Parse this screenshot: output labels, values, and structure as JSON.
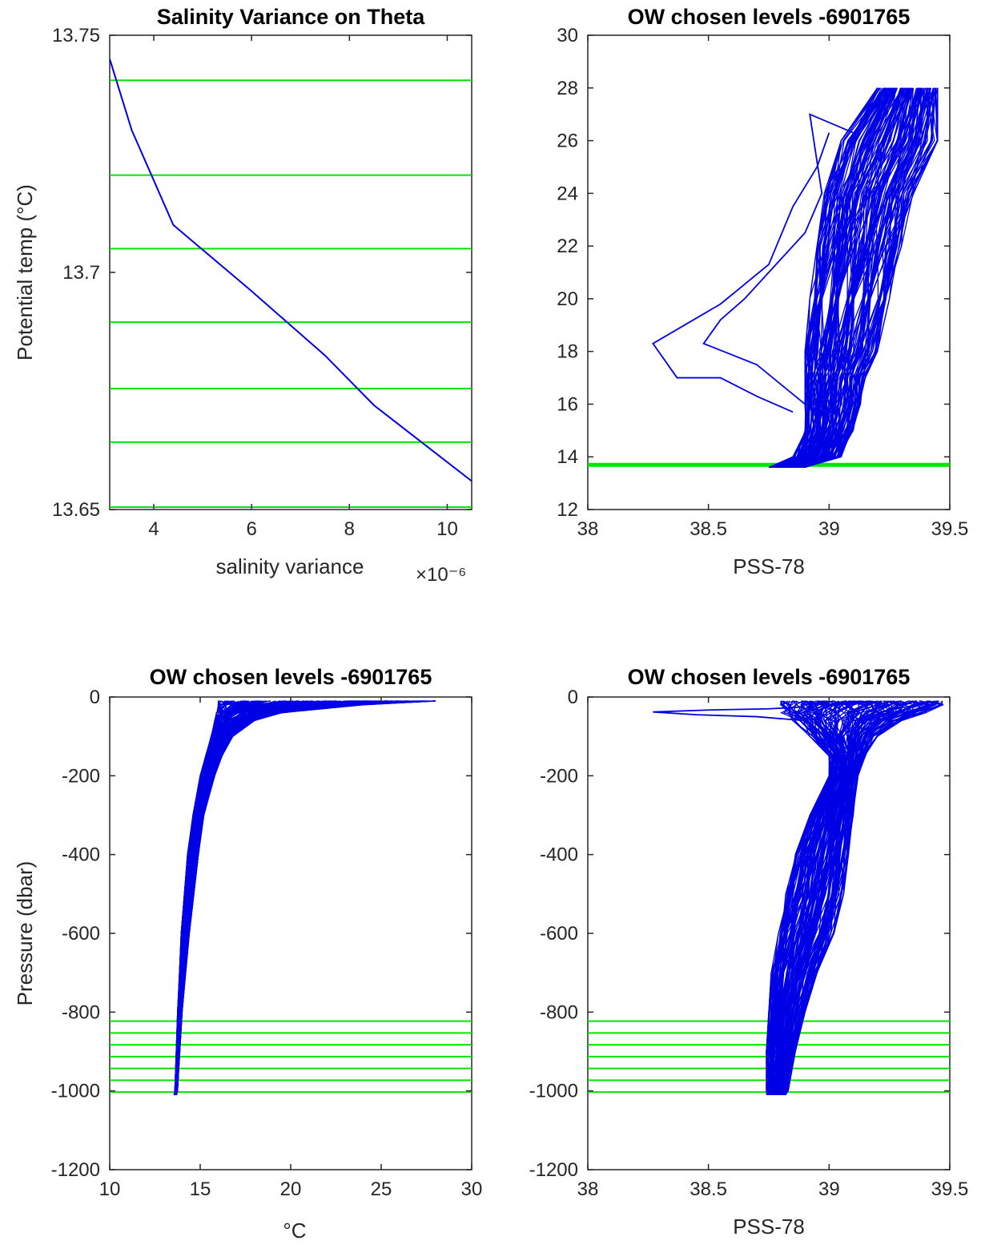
{
  "colors": {
    "profile": "#0000e6",
    "level": "#00e600",
    "axis": "#262626",
    "background": "#ffffff"
  },
  "chart_data": [
    {
      "type": "line",
      "title": "Salinity Variance on Theta",
      "xlabel": "salinity variance",
      "ylabel": "Potential temp (°C)",
      "x_exponent": "×10⁻⁶",
      "xlim": [
        3.1e-06,
        1.05e-05
      ],
      "ylim": [
        13.65,
        13.75
      ],
      "x_ticks": [
        4e-06,
        6e-06,
        8e-06,
        1e-05
      ],
      "x_tick_labels": [
        "4",
        "6",
        "8",
        "10"
      ],
      "y_ticks": [
        13.65,
        13.7,
        13.75
      ],
      "y_tick_labels": [
        "13.65",
        "13.7",
        "13.75"
      ],
      "series": [
        {
          "x": [
            3.1e-06,
            3.55e-06,
            4.4e-06,
            5.95e-06,
            7.5e-06,
            8.5e-06,
            1.05e-05
          ],
          "y": [
            13.745,
            13.73,
            13.71,
            13.6965,
            13.6825,
            13.672,
            13.656
          ]
        }
      ],
      "level_lines_y": [
        13.7405,
        13.7205,
        13.705,
        13.6895,
        13.6755,
        13.6642,
        13.6505
      ]
    },
    {
      "type": "line",
      "title": "OW chosen levels -6901765",
      "xlabel": "PSS-78",
      "ylabel": "",
      "xlim": [
        38,
        39.5
      ],
      "ylim": [
        12,
        30
      ],
      "x_ticks": [
        38,
        38.5,
        39,
        39.5
      ],
      "x_tick_labels": [
        "38",
        "38.5",
        "39",
        "39.5"
      ],
      "y_ticks": [
        12,
        14,
        16,
        18,
        20,
        22,
        24,
        26,
        28,
        30
      ],
      "y_tick_labels": [
        "12",
        "14",
        "16",
        "18",
        "20",
        "22",
        "24",
        "26",
        "28",
        "30"
      ],
      "profile_count": 140,
      "profile_envelope": {
        "theta": [
          13.6,
          14,
          15,
          16,
          17,
          18,
          20,
          22,
          24,
          26,
          28
        ],
        "salinity_min": [
          38.75,
          38.85,
          38.9,
          38.9,
          38.9,
          38.9,
          38.92,
          38.95,
          38.98,
          39.05,
          39.2
        ],
        "salinity_max": [
          38.9,
          39.05,
          39.1,
          39.13,
          39.15,
          39.2,
          39.25,
          39.3,
          39.35,
          39.45,
          39.45
        ]
      },
      "outlier_profiles": [
        {
          "x": [
            38.85,
            38.7,
            38.55,
            38.37,
            38.27,
            38.55,
            38.75,
            38.85,
            38.95,
            39.0
          ],
          "y": [
            15.7,
            16.3,
            17.0,
            17.0,
            18.3,
            19.8,
            21.3,
            23.5,
            25.0,
            26.3
          ]
        },
        {
          "x": [
            38.9,
            38.7,
            38.48,
            38.55,
            38.65,
            38.9,
            38.97,
            38.92,
            39.1
          ],
          "y": [
            16.0,
            17.5,
            18.3,
            19.2,
            20.0,
            22.5,
            24.0,
            27.0,
            26.3
          ]
        }
      ],
      "level_lines_y": [
        13.65,
        13.67,
        13.69,
        13.7,
        13.71,
        13.73,
        13.74
      ]
    },
    {
      "type": "line",
      "title": "OW chosen levels -6901765",
      "xlabel": "°C",
      "ylabel": "Pressure (dbar)",
      "xlim": [
        10,
        30
      ],
      "ylim": [
        -1200,
        0
      ],
      "x_ticks": [
        10,
        15,
        20,
        25,
        30
      ],
      "x_tick_labels": [
        "10",
        "15",
        "20",
        "25",
        "30"
      ],
      "y_ticks": [
        -1200,
        -1000,
        -800,
        -600,
        -400,
        -200,
        0
      ],
      "y_tick_labels": [
        "-1200",
        "-1000",
        "-800",
        "-600",
        "-400",
        "-200",
        "0"
      ],
      "profile_count": 140,
      "profile_envelope": {
        "pressure": [
          -1010,
          -1000,
          -800,
          -600,
          -400,
          -300,
          -200,
          -150,
          -100,
          -60,
          -40,
          -20,
          -10
        ],
        "temp_min": [
          13.55,
          13.6,
          13.75,
          13.95,
          14.3,
          14.6,
          15.0,
          15.3,
          15.6,
          15.8,
          15.9,
          16.0,
          16.0
        ],
        "temp_max": [
          13.7,
          13.75,
          14.0,
          14.4,
          14.9,
          15.2,
          15.8,
          16.2,
          16.8,
          18.0,
          19.5,
          24.0,
          28.0
        ]
      },
      "level_lines_y": [
        -823,
        -853,
        -883,
        -913,
        -943,
        -973,
        -1003
      ]
    },
    {
      "type": "line",
      "title": "OW chosen levels -6901765",
      "xlabel": "PSS-78",
      "ylabel": "",
      "xlim": [
        38,
        39.5
      ],
      "ylim": [
        -1200,
        0
      ],
      "x_ticks": [
        38,
        38.5,
        39,
        39.5
      ],
      "x_tick_labels": [
        "38",
        "38.5",
        "39",
        "39.5"
      ],
      "y_ticks": [
        -1200,
        -1000,
        -800,
        -600,
        -400,
        -200,
        0
      ],
      "y_tick_labels": [
        "-1200",
        "-1000",
        "-800",
        "-600",
        "-400",
        "-200",
        "0"
      ],
      "profile_count": 140,
      "profile_envelope": {
        "pressure": [
          -1010,
          -1000,
          -900,
          -800,
          -700,
          -600,
          -500,
          -400,
          -300,
          -200,
          -150,
          -100,
          -60,
          -40,
          -20,
          -10
        ],
        "salinity_min": [
          38.74,
          38.74,
          38.74,
          38.75,
          38.76,
          38.79,
          38.82,
          38.86,
          38.92,
          39.0,
          39.0,
          38.92,
          38.85,
          38.8,
          38.8,
          38.8
        ],
        "salinity_max": [
          38.82,
          38.83,
          38.86,
          38.9,
          38.95,
          39.02,
          39.06,
          39.08,
          39.1,
          39.12,
          39.15,
          39.2,
          39.3,
          39.4,
          39.47,
          39.47
        ]
      },
      "outlier_profiles": [
        {
          "x": [
            38.9,
            38.7,
            38.45,
            38.27,
            38.5,
            38.75,
            38.9
          ],
          "y": [
            -60,
            -50,
            -45,
            -38,
            -33,
            -30,
            -25
          ]
        }
      ],
      "level_lines_y": [
        -823,
        -853,
        -883,
        -913,
        -943,
        -973,
        -1003
      ]
    }
  ]
}
